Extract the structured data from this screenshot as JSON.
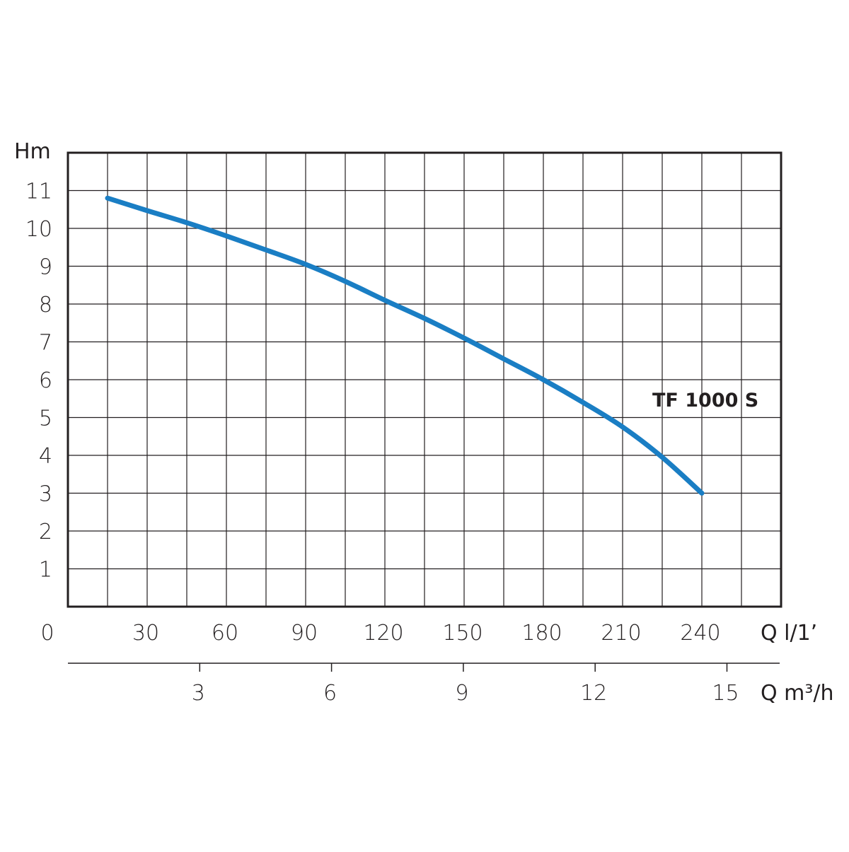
{
  "chart_data": {
    "type": "line",
    "ylabel": "Hm",
    "xlabel": "Q l/1’",
    "x2label": "Q m³/h",
    "ylim": [
      0,
      12
    ],
    "xlim": [
      0,
      270
    ],
    "x2lim": [
      0,
      16.2
    ],
    "y_ticks": [
      "1",
      "2",
      "3",
      "4",
      "5",
      "6",
      "7",
      "8",
      "9",
      "10",
      "11"
    ],
    "x_ticks": [
      "0",
      "30",
      "60",
      "90",
      "120",
      "150",
      "180",
      "210",
      "240"
    ],
    "x2_ticks": [
      "3",
      "6",
      "9",
      "12",
      "15"
    ],
    "grid": true,
    "grid_x_step": 15,
    "series": [
      {
        "name": "TF 1000 S",
        "color": "#1a7ec4",
        "x": [
          15,
          30,
          45,
          60,
          75,
          90,
          105,
          120,
          135,
          150,
          165,
          180,
          195,
          210,
          225,
          240
        ],
        "y": [
          10.8,
          10.47,
          10.15,
          9.8,
          9.43,
          9.05,
          8.6,
          8.1,
          7.62,
          7.1,
          6.55,
          6.0,
          5.4,
          4.75,
          3.95,
          3.0
        ]
      }
    ]
  }
}
